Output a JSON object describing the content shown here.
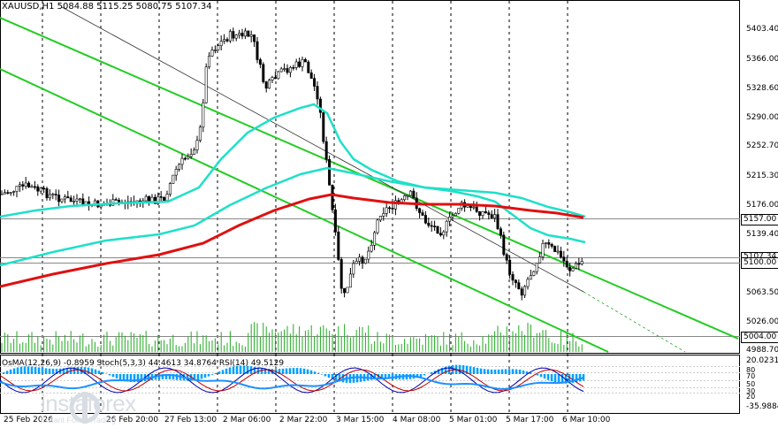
{
  "chart": {
    "header": "XAUUSD,H1  5084.88 5115.25 5080.75 5107.34",
    "indicator_header": "OsMA(12,26,9) -0.8959   Stoch(5,3,3) 44.4613 34.8764   RSI(14) 49.5129",
    "price_ticks": [
      "5403.40",
      "5366.00",
      "5328.60",
      "5290.00",
      "5252.70",
      "5215.30",
      "5176.00",
      "5139.40",
      "5100.00",
      "5063.50",
      "5026.00",
      "4988.70"
    ],
    "price_tags": {
      "resistance": "5157.00",
      "current_upper": "5107.34",
      "current": "5100.00",
      "support": "5004.00"
    },
    "indicator_ticks": {
      "top": "20.0231",
      "bottom": "-35.9884",
      "stoch_80": "80",
      "stoch_70": "70",
      "stoch_50": "50",
      "stoch_30": "30",
      "stoch_20": "20"
    },
    "time_ticks": [
      "25 Feb 2026",
      "26 Feb 20:00",
      "27 Feb 13:00",
      "2 Mar 06:00",
      "2 Mar 22:00",
      "3 Mar 15:00",
      "4 Mar 08:00",
      "5 Mar 01:00",
      "5 Mar 17:00",
      "6 Mar 10:00"
    ],
    "colors": {
      "ema_fast": "#1fe0c8",
      "ema_slow": "#e01010",
      "channel": "#22cc22",
      "osma": "#00a0ff",
      "stoch_main": "#0000aa",
      "stoch_signal": "#c00000",
      "rsi": "#1e90ff"
    }
  },
  "branding": {
    "logo_text": "instaforex",
    "tagline": "Instant Forex Trading",
    "icon": "instaforex-logo-icon"
  }
}
